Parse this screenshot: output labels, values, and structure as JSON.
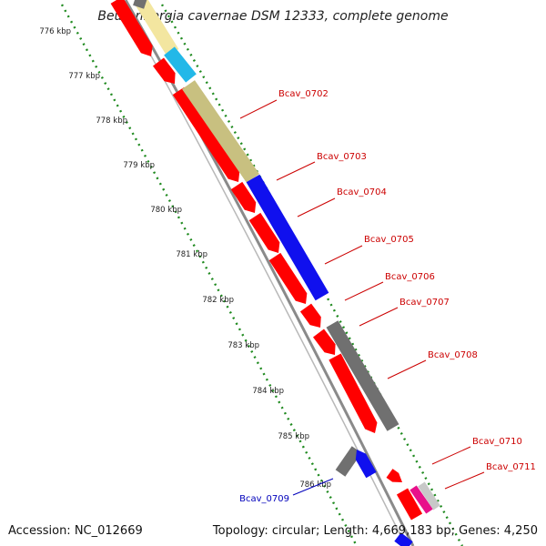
{
  "title": "Beutenbergia cavernae DSM 12333, complete genome",
  "accession": "Accession: NC_012669",
  "topology": "Topology: circular; Length: 4,669,183 bp; Genes: 4,250",
  "colors": {
    "red": "#ff0000",
    "blue": "#1010ee",
    "olive": "#c8c080",
    "grey": "#707070",
    "cyan": "#22b8e8",
    "yellow": "#f3e6a0",
    "pink": "#e8108a",
    "lightgrey": "#c8c8c8",
    "tick": "#1f8a1f",
    "label_red": "#cc0000",
    "label_blue": "#0000bb",
    "backbone": "#8a8a8a"
  },
  "ticks": [
    "776 kbp",
    "777 kbp",
    "778 kbp",
    "779 kbp",
    "780 kbp",
    "781 kbp",
    "782 kbp",
    "783 kbp",
    "784 kbp",
    "785 kbp",
    "786 kbp"
  ],
  "gene_labels": [
    {
      "text": "Bcav_0702",
      "color": "red"
    },
    {
      "text": "Bcav_0703",
      "color": "red"
    },
    {
      "text": "Bcav_0704",
      "color": "red"
    },
    {
      "text": "Bcav_0705",
      "color": "red"
    },
    {
      "text": "Bcav_0706",
      "color": "red"
    },
    {
      "text": "Bcav_0707",
      "color": "red"
    },
    {
      "text": "Bcav_0708",
      "color": "red"
    },
    {
      "text": "Bcav_0710",
      "color": "red"
    },
    {
      "text": "Bcav_0711",
      "color": "red"
    },
    {
      "text": "Bcav_0709",
      "color": "blue"
    }
  ]
}
